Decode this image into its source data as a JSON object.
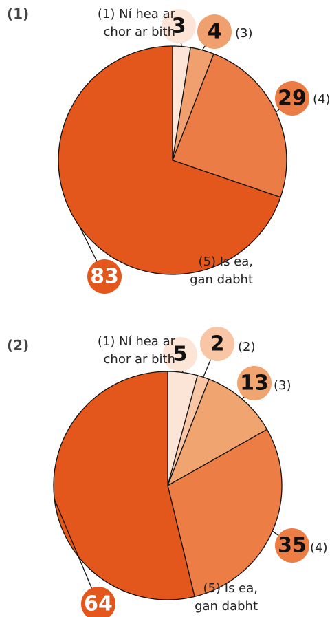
{
  "chart_data": [
    {
      "type": "pie",
      "title": "(1)",
      "categories": [
        "(1) Ní hea ar chor ar bith",
        "(3)",
        "(4)",
        "(5) Is ea, gan dabht"
      ],
      "values": [
        3,
        4,
        29,
        83
      ],
      "colors": [
        "#fce4d6",
        "#f0a06e",
        "#ec7c45",
        "#e4571c"
      ]
    },
    {
      "type": "pie",
      "title": "(2)",
      "categories": [
        "(1) Ní hea ar chor ar bith",
        "(2)",
        "(3)",
        "(4)",
        "(5) Is ea, gan dabht"
      ],
      "values": [
        5,
        2,
        13,
        35,
        64
      ],
      "colors": [
        "#fce4d6",
        "#f8c6a5",
        "#f0a470",
        "#ec7d45",
        "#e4571c"
      ]
    }
  ]
}
